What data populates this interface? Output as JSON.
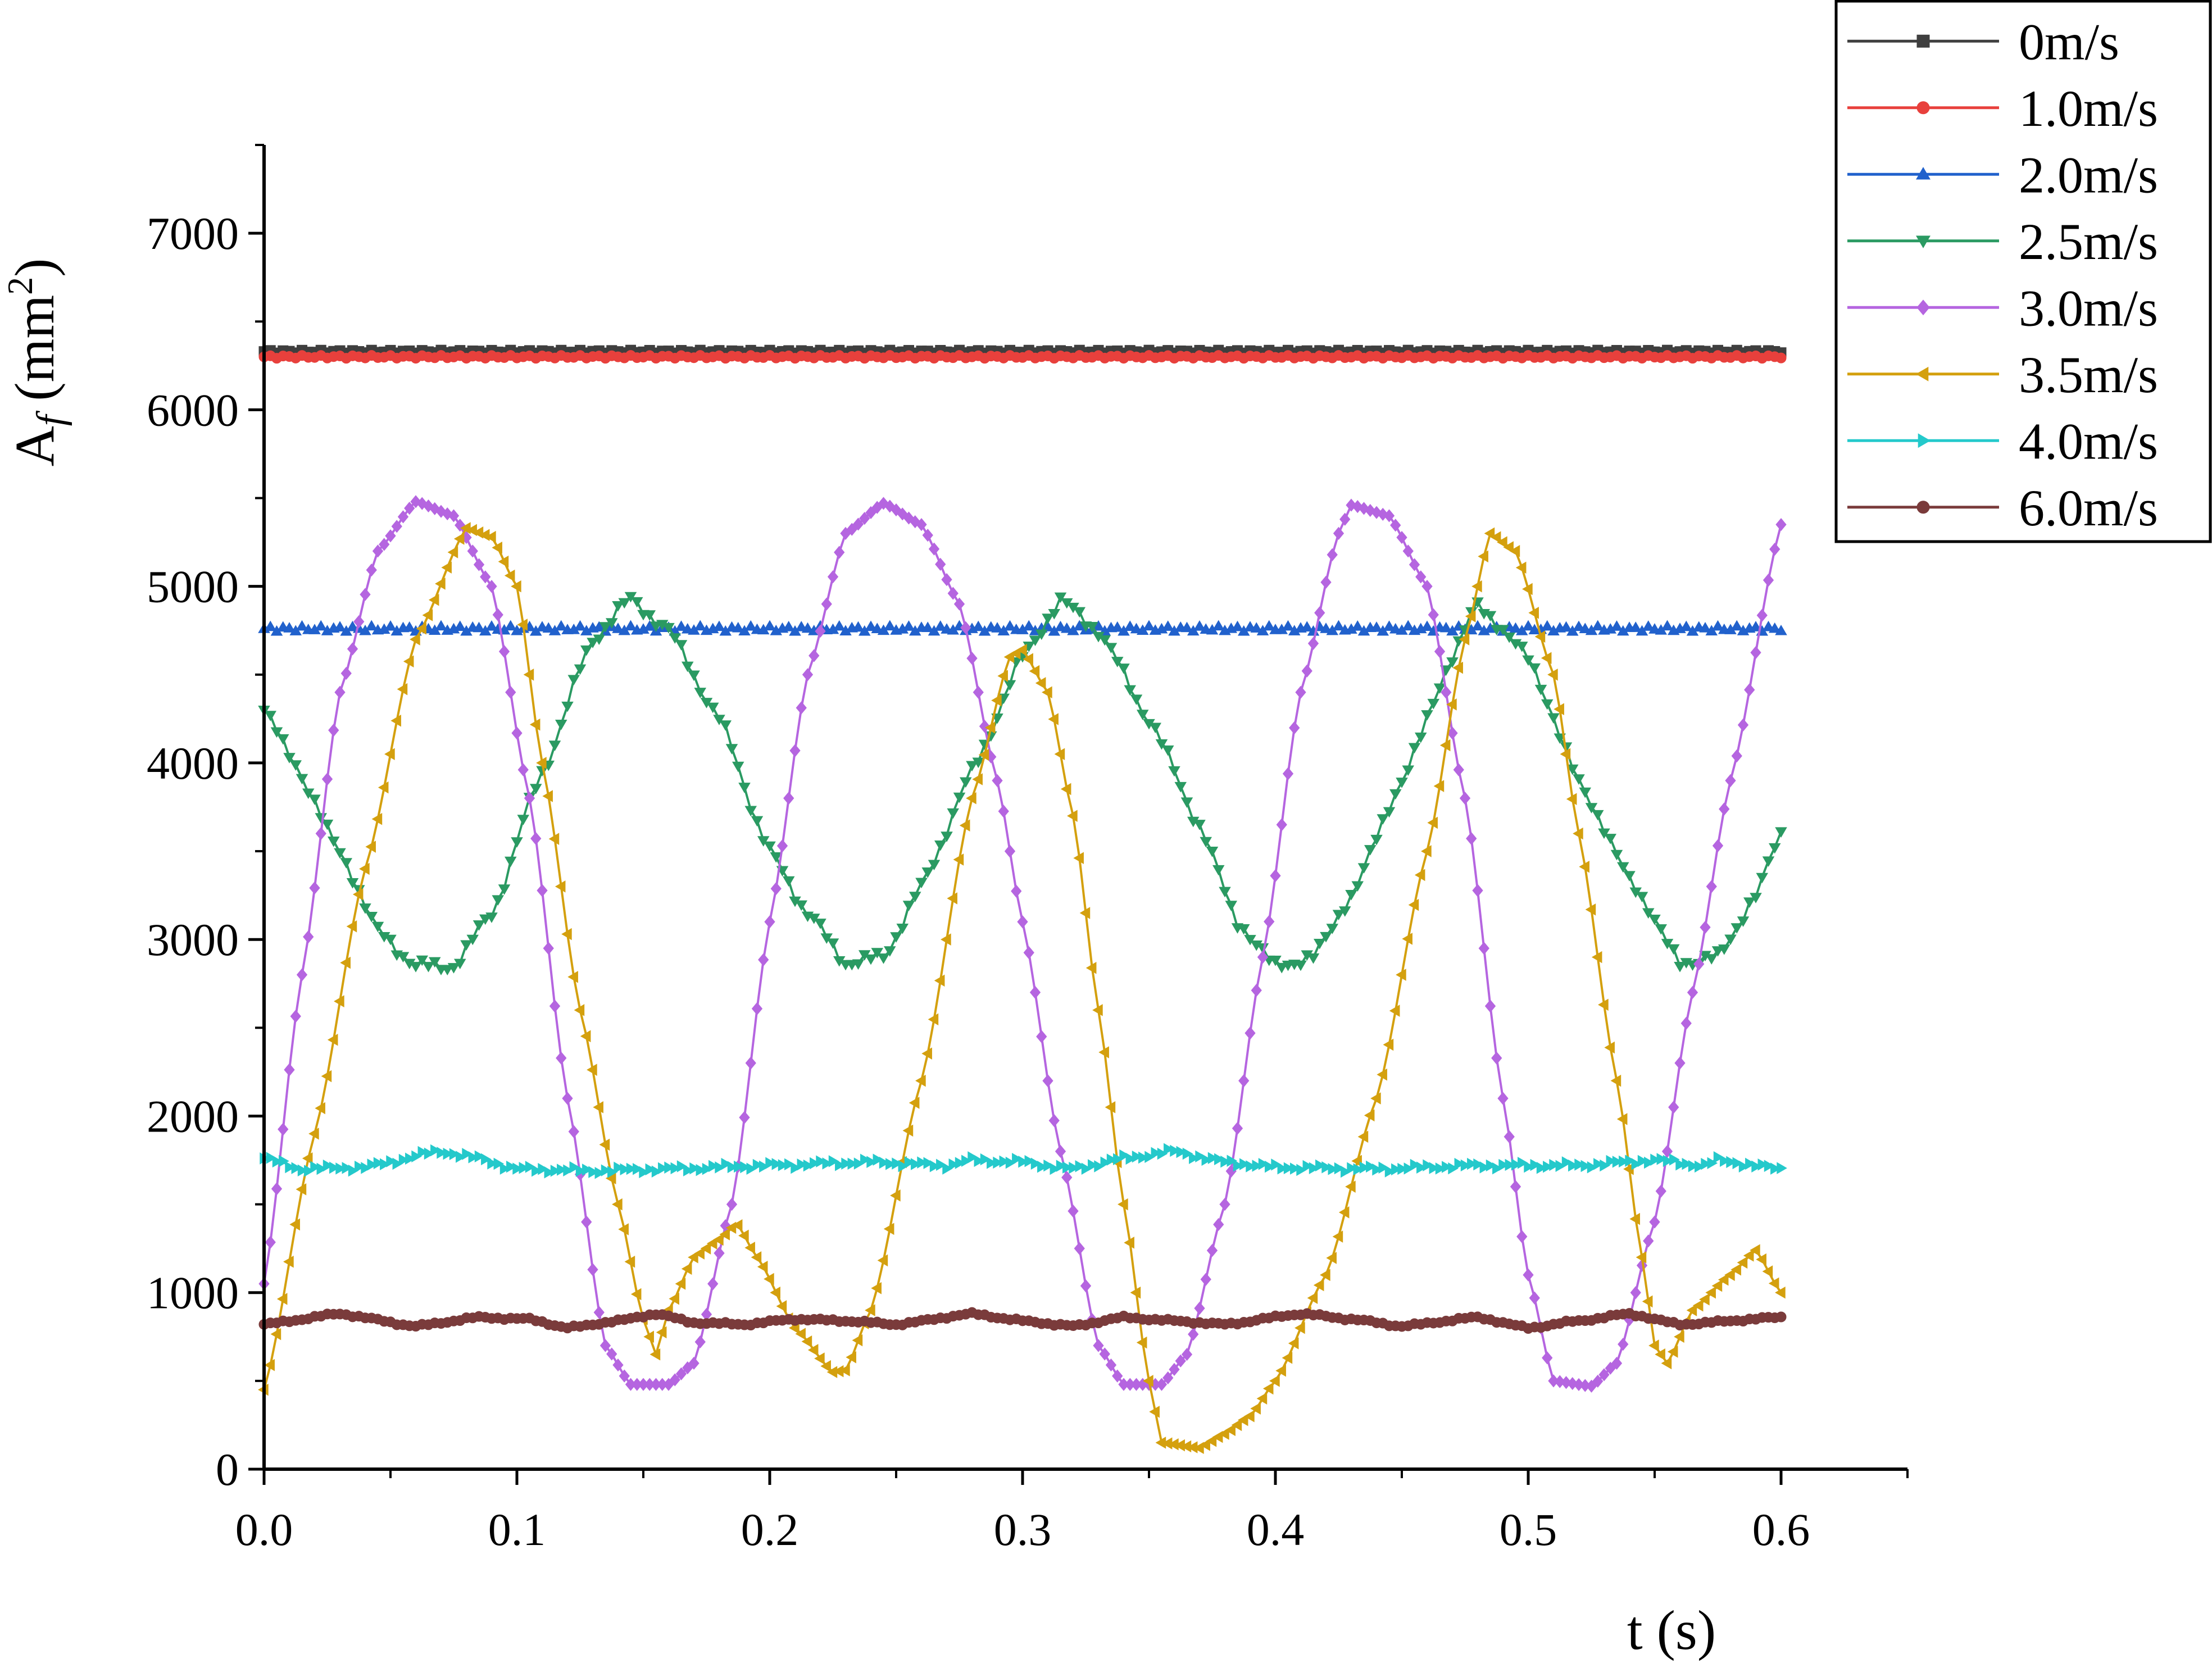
{
  "chart_data": {
    "type": "line",
    "xlabel": "t (s)",
    "ylabel": {
      "base": "A",
      "sub": "f",
      "unit_open": " (mm",
      "unit_sup": "2",
      "unit_close": ")"
    },
    "xlim": [
      0,
      0.65
    ],
    "ylim": [
      0,
      7500
    ],
    "x_ticks": [
      0,
      0.1,
      0.2,
      0.3,
      0.4,
      0.5,
      0.6
    ],
    "x_tick_labels": [
      "0.0",
      "0.1",
      "0.2",
      "0.3",
      "0.4",
      "0.5",
      "0.6"
    ],
    "y_ticks": [
      0,
      1000,
      2000,
      3000,
      4000,
      5000,
      6000,
      7000
    ],
    "y_tick_labels": [
      "0",
      "1000",
      "2000",
      "3000",
      "4000",
      "5000",
      "6000",
      "7000"
    ],
    "grid": false,
    "legend_position": "top-right",
    "t_max": 0.6,
    "sample_step": 0.0025,
    "series": [
      {
        "name": "0m/s",
        "color": "#3f3f3f",
        "marker": "square",
        "model": {
          "kind": "constant",
          "base": 6330,
          "ripple": 8
        }
      },
      {
        "name": "1.0m/s",
        "color": "#e8403c",
        "marker": "circle",
        "model": {
          "kind": "constant",
          "base": 6300,
          "ripple": 8
        }
      },
      {
        "name": "2.0m/s",
        "color": "#2161cc",
        "marker": "triangle-up",
        "model": {
          "kind": "constant",
          "base": 4760,
          "ripple": 15
        }
      },
      {
        "name": "2.5m/s",
        "color": "#2a9a62",
        "marker": "triangle-down",
        "model": {
          "kind": "keypoints",
          "noise": 40,
          "points": [
            [
              0,
              4300
            ],
            [
              0.01,
              4050
            ],
            [
              0.03,
              3500
            ],
            [
              0.045,
              3050
            ],
            [
              0.06,
              2850
            ],
            [
              0.075,
              2850
            ],
            [
              0.09,
              3150
            ],
            [
              0.11,
              3950
            ],
            [
              0.13,
              4700
            ],
            [
              0.145,
              4930
            ],
            [
              0.16,
              4750
            ],
            [
              0.18,
              4250
            ],
            [
              0.2,
              3500
            ],
            [
              0.215,
              3150
            ],
            [
              0.23,
              2870
            ],
            [
              0.245,
              2900
            ],
            [
              0.26,
              3300
            ],
            [
              0.28,
              3950
            ],
            [
              0.3,
              4600
            ],
            [
              0.315,
              4920
            ],
            [
              0.33,
              4750
            ],
            [
              0.35,
              4250
            ],
            [
              0.37,
              3650
            ],
            [
              0.385,
              3100
            ],
            [
              0.4,
              2850
            ],
            [
              0.415,
              2900
            ],
            [
              0.43,
              3250
            ],
            [
              0.45,
              3900
            ],
            [
              0.47,
              4600
            ],
            [
              0.48,
              4900
            ],
            [
              0.5,
              4600
            ],
            [
              0.52,
              3900
            ],
            [
              0.54,
              3350
            ],
            [
              0.56,
              2870
            ],
            [
              0.575,
              2900
            ],
            [
              0.59,
              3250
            ],
            [
              0.6,
              3600
            ]
          ]
        }
      },
      {
        "name": "3.0m/s",
        "color": "#b565e0",
        "marker": "diamond",
        "model": {
          "kind": "keypoints",
          "noise": 0,
          "points": [
            [
              0,
              1050
            ],
            [
              0.015,
              2800
            ],
            [
              0.03,
              4400
            ],
            [
              0.045,
              5200
            ],
            [
              0.06,
              5480
            ],
            [
              0.075,
              5400
            ],
            [
              0.09,
              5000
            ],
            [
              0.105,
              3800
            ],
            [
              0.12,
              2100
            ],
            [
              0.135,
              700
            ],
            [
              0.145,
              480
            ],
            [
              0.16,
              480
            ],
            [
              0.17,
              600
            ],
            [
              0.185,
              1500
            ],
            [
              0.2,
              3100
            ],
            [
              0.215,
              4500
            ],
            [
              0.23,
              5300
            ],
            [
              0.245,
              5470
            ],
            [
              0.26,
              5350
            ],
            [
              0.275,
              4900
            ],
            [
              0.29,
              3900
            ],
            [
              0.3,
              3100
            ],
            [
              0.315,
              1800
            ],
            [
              0.33,
              700
            ],
            [
              0.34,
              480
            ],
            [
              0.355,
              480
            ],
            [
              0.365,
              650
            ],
            [
              0.38,
              1500
            ],
            [
              0.395,
              2900
            ],
            [
              0.41,
              4400
            ],
            [
              0.425,
              5300
            ],
            [
              0.43,
              5460
            ],
            [
              0.445,
              5400
            ],
            [
              0.46,
              5000
            ],
            [
              0.475,
              3800
            ],
            [
              0.49,
              2100
            ],
            [
              0.5,
              1100
            ],
            [
              0.51,
              500
            ],
            [
              0.525,
              470
            ],
            [
              0.535,
              600
            ],
            [
              0.55,
              1400
            ],
            [
              0.565,
              2700
            ],
            [
              0.58,
              3900
            ],
            [
              0.6,
              5350
            ]
          ]
        }
      },
      {
        "name": "3.5m/s",
        "color": "#d4a00e",
        "marker": "triangle-left",
        "model": {
          "kind": "keypoints",
          "noise": 0,
          "points": [
            [
              0,
              450
            ],
            [
              0.02,
              1900
            ],
            [
              0.04,
              3400
            ],
            [
              0.06,
              4700
            ],
            [
              0.08,
              5330
            ],
            [
              0.09,
              5280
            ],
            [
              0.1,
              5000
            ],
            [
              0.11,
              4000
            ],
            [
              0.125,
              2600
            ],
            [
              0.14,
              1500
            ],
            [
              0.15,
              850
            ],
            [
              0.155,
              650
            ],
            [
              0.16,
              900
            ],
            [
              0.17,
              1200
            ],
            [
              0.18,
              1300
            ],
            [
              0.187,
              1390
            ],
            [
              0.195,
              1200
            ],
            [
              0.21,
              800
            ],
            [
              0.225,
              550
            ],
            [
              0.23,
              560
            ],
            [
              0.24,
              900
            ],
            [
              0.26,
              2200
            ],
            [
              0.28,
              3800
            ],
            [
              0.295,
              4600
            ],
            [
              0.3,
              4640
            ],
            [
              0.31,
              4400
            ],
            [
              0.32,
              3700
            ],
            [
              0.33,
              2600
            ],
            [
              0.34,
              1500
            ],
            [
              0.35,
              500
            ],
            [
              0.355,
              150
            ],
            [
              0.37,
              120
            ],
            [
              0.38,
              200
            ],
            [
              0.39,
              300
            ],
            [
              0.4,
              500
            ],
            [
              0.42,
              1100
            ],
            [
              0.44,
              2100
            ],
            [
              0.46,
              3500
            ],
            [
              0.475,
              4700
            ],
            [
              0.485,
              5300
            ],
            [
              0.495,
              5200
            ],
            [
              0.51,
              4500
            ],
            [
              0.52,
              3600
            ],
            [
              0.535,
              2200
            ],
            [
              0.545,
              1200
            ],
            [
              0.55,
              700
            ],
            [
              0.555,
              600
            ],
            [
              0.565,
              900
            ],
            [
              0.58,
              1100
            ],
            [
              0.59,
              1240
            ],
            [
              0.6,
              1000
            ]
          ]
        }
      },
      {
        "name": "4.0m/s",
        "color": "#24c9cb",
        "marker": "triangle-right",
        "model": {
          "kind": "keypoints",
          "noise": 18,
          "points": [
            [
              0,
              1760
            ],
            [
              0.015,
              1700
            ],
            [
              0.04,
              1710
            ],
            [
              0.07,
              1800
            ],
            [
              0.085,
              1760
            ],
            [
              0.1,
              1700
            ],
            [
              0.13,
              1690
            ],
            [
              0.16,
              1700
            ],
            [
              0.2,
              1720
            ],
            [
              0.24,
              1740
            ],
            [
              0.27,
              1720
            ],
            [
              0.28,
              1750
            ],
            [
              0.3,
              1740
            ],
            [
              0.32,
              1700
            ],
            [
              0.34,
              1760
            ],
            [
              0.36,
              1800
            ],
            [
              0.38,
              1740
            ],
            [
              0.4,
              1710
            ],
            [
              0.44,
              1700
            ],
            [
              0.48,
              1720
            ],
            [
              0.52,
              1720
            ],
            [
              0.55,
              1750
            ],
            [
              0.57,
              1720
            ],
            [
              0.575,
              1750
            ],
            [
              0.6,
              1700
            ]
          ]
        }
      },
      {
        "name": "6.0m/s",
        "color": "#7a3b3b",
        "marker": "circle",
        "model": {
          "kind": "keypoints",
          "noise": 8,
          "points": [
            [
              0,
              820
            ],
            [
              0.03,
              880
            ],
            [
              0.06,
              810
            ],
            [
              0.085,
              860
            ],
            [
              0.105,
              850
            ],
            [
              0.12,
              800
            ],
            [
              0.14,
              840
            ],
            [
              0.155,
              880
            ],
            [
              0.17,
              830
            ],
            [
              0.19,
              820
            ],
            [
              0.21,
              850
            ],
            [
              0.23,
              840
            ],
            [
              0.25,
              820
            ],
            [
              0.28,
              880
            ],
            [
              0.3,
              840
            ],
            [
              0.32,
              810
            ],
            [
              0.34,
              860
            ],
            [
              0.36,
              840
            ],
            [
              0.38,
              820
            ],
            [
              0.41,
              880
            ],
            [
              0.43,
              850
            ],
            [
              0.45,
              810
            ],
            [
              0.48,
              860
            ],
            [
              0.5,
              800
            ],
            [
              0.52,
              840
            ],
            [
              0.54,
              880
            ],
            [
              0.56,
              820
            ],
            [
              0.6,
              860
            ]
          ]
        }
      }
    ]
  }
}
